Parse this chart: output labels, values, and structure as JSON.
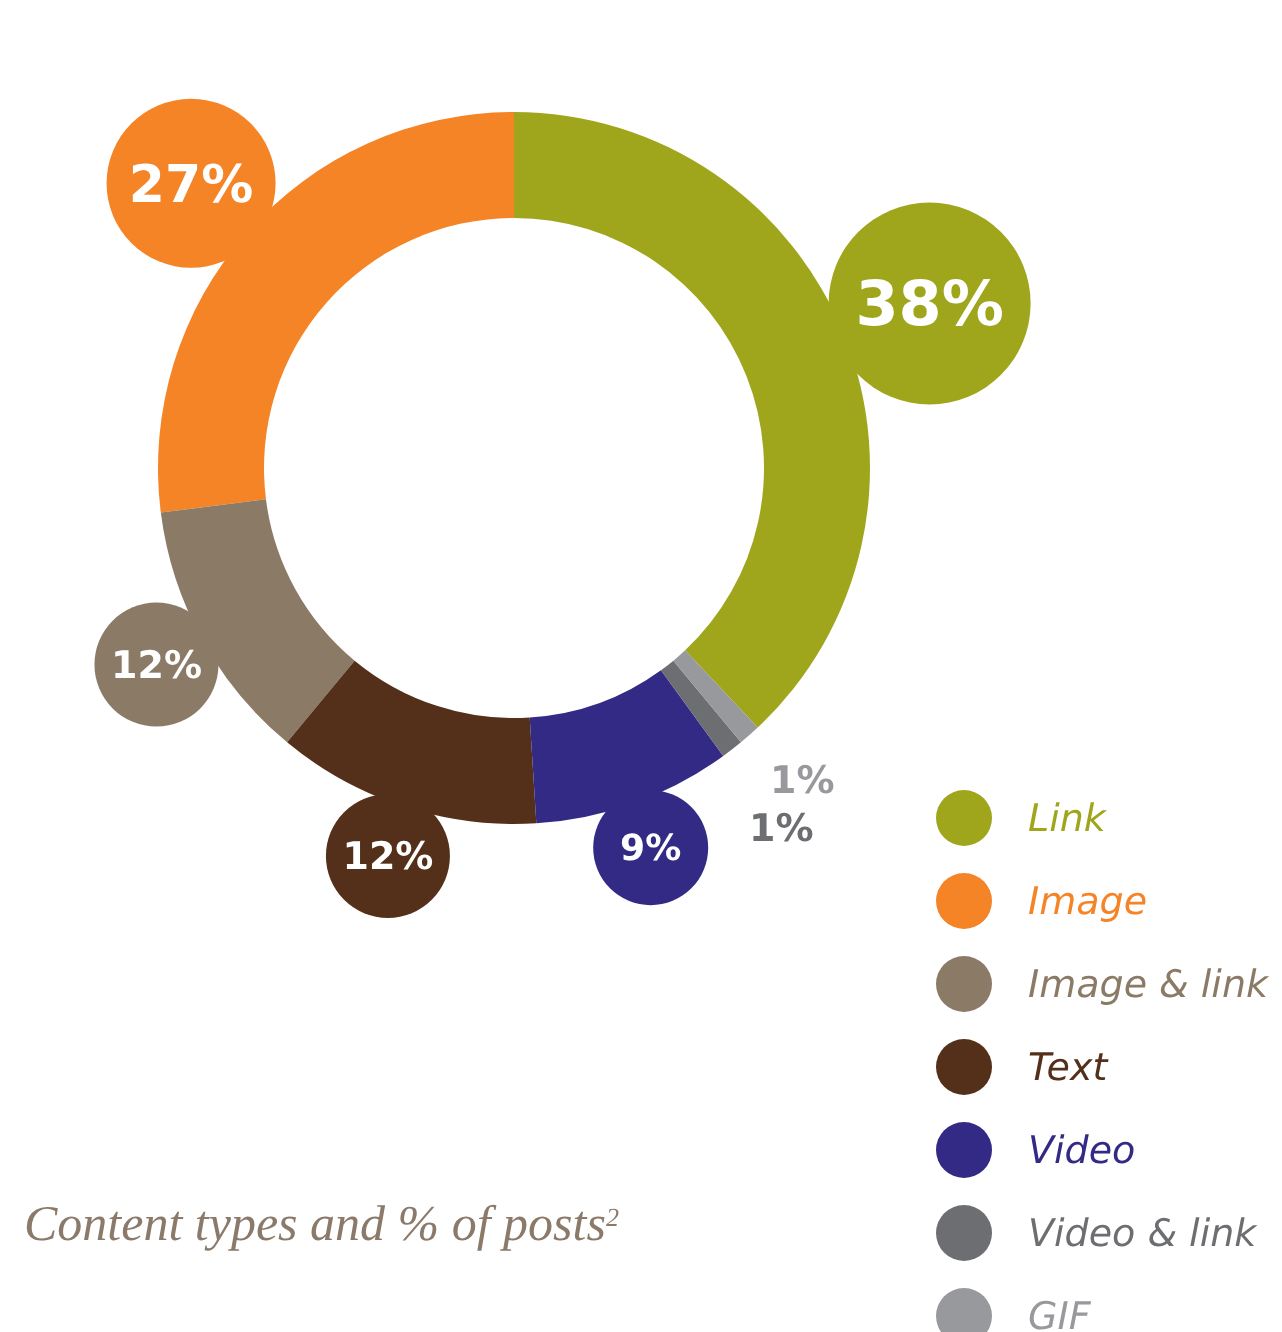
{
  "chart_data": {
    "type": "donut",
    "title": "Content types and % of posts$^{2}$",
    "categories": [
      "Link",
      "Image",
      "Image & link",
      "Text",
      "Video",
      "Video & link",
      "GIF"
    ],
    "values": [
      38,
      27,
      12,
      12,
      9,
      1,
      1
    ],
    "value_labels": [
      "38%",
      "27%",
      "12%",
      "12%",
      "9%",
      "1%",
      "1%"
    ],
    "colors": [
      "#a0a61c",
      "#f58426",
      "#8b7a66",
      "#54301a",
      "#332a86",
      "#6d6e71",
      "#98999c"
    ],
    "legend": "bottom right"
  }
}
